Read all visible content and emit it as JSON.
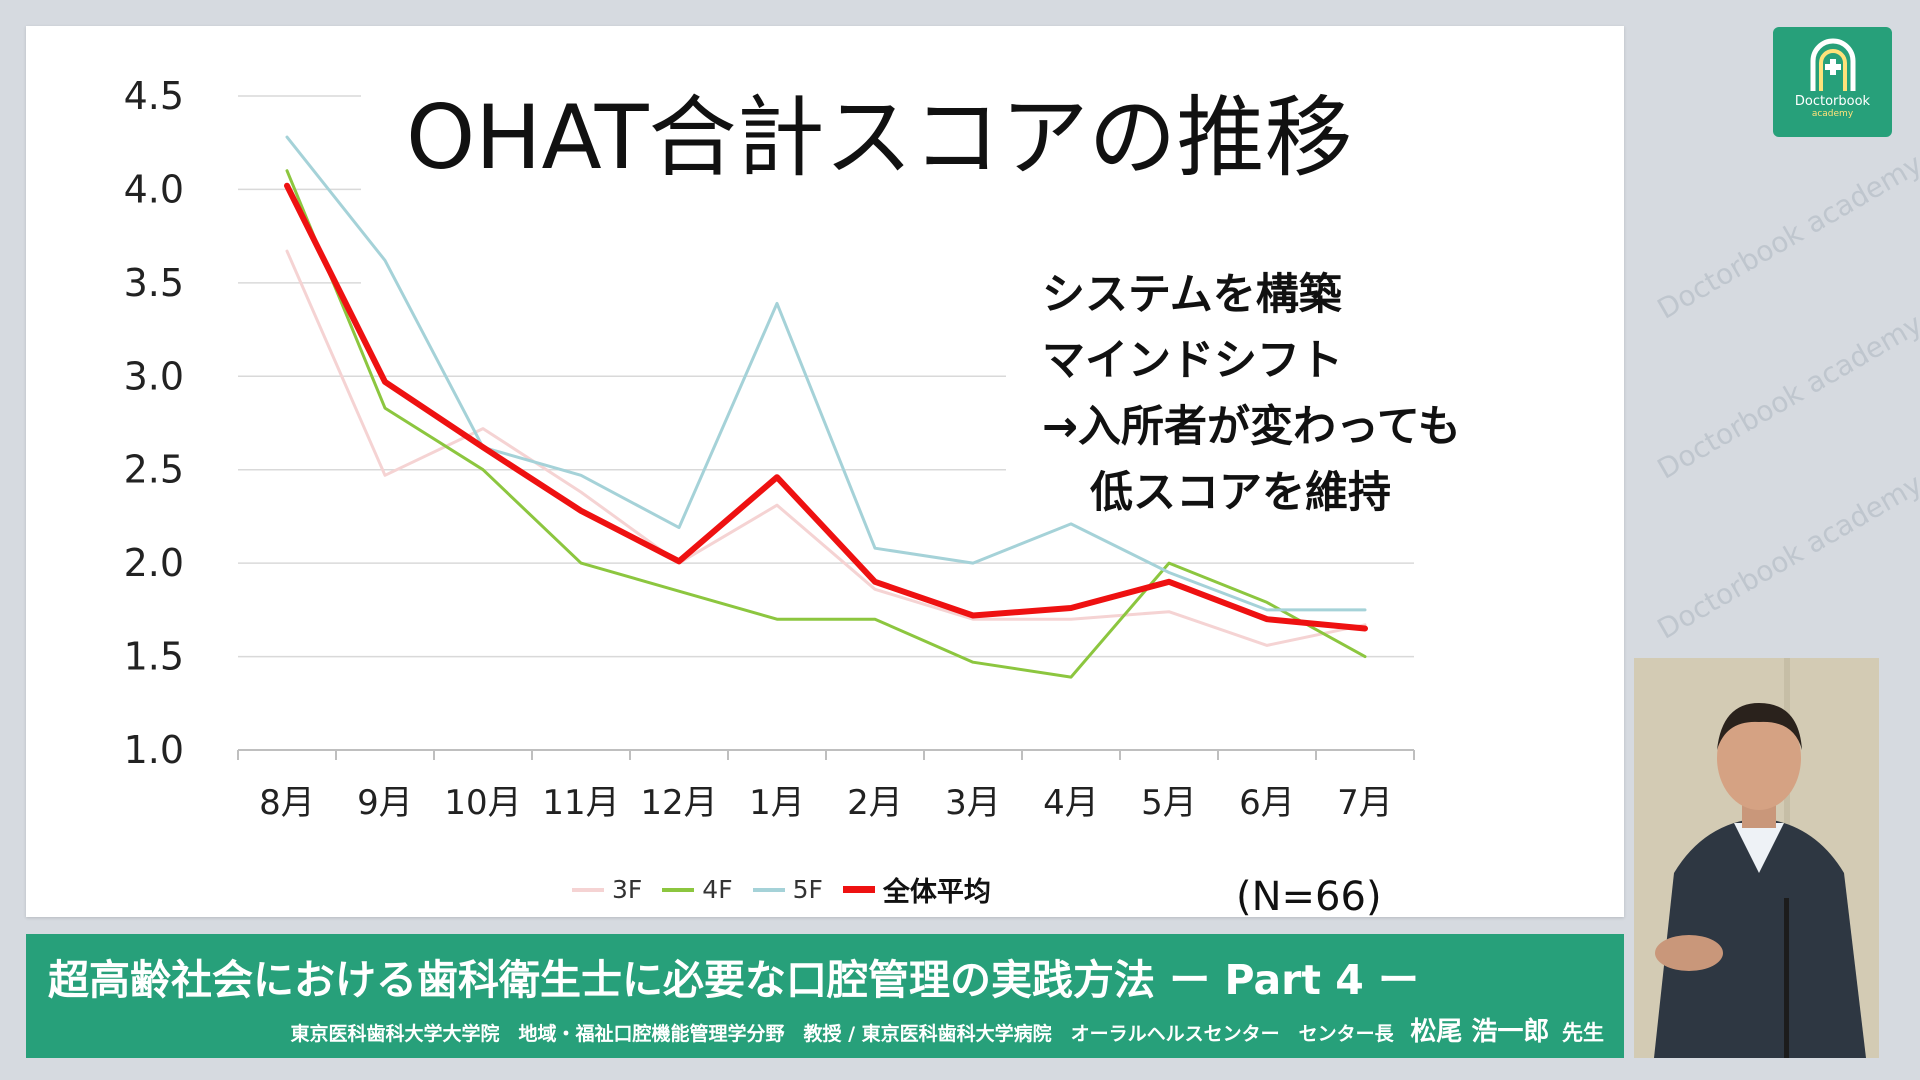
{
  "slide": {
    "title": "OHAT合計スコアの推移",
    "notes": [
      "システムを構築",
      "マインドシフト",
      "→入所者が変わっても",
      "低スコアを維持"
    ],
    "n_label": "(N=66)"
  },
  "chart_data": {
    "type": "line",
    "title": "OHAT合計スコアの推移",
    "categories": [
      "8月",
      "9月",
      "10月",
      "11月",
      "12月",
      "1月",
      "2月",
      "3月",
      "4月",
      "5月",
      "6月",
      "7月"
    ],
    "ylim": [
      1.0,
      4.5
    ],
    "yticks": [
      "1.0",
      "1.5",
      "2.0",
      "2.5",
      "3.0",
      "3.5",
      "4.0",
      "4.5"
    ],
    "grid": true,
    "legend_position": "bottom",
    "series": [
      {
        "name": "3F",
        "color": "#f5d3d3",
        "width": 3,
        "values": [
          3.67,
          2.47,
          2.72,
          2.38,
          2.0,
          2.31,
          1.86,
          1.7,
          1.7,
          1.74,
          1.56,
          1.67
        ]
      },
      {
        "name": "4F",
        "color": "#8cc63f",
        "width": 3,
        "values": [
          4.1,
          2.83,
          2.5,
          2.0,
          1.85,
          1.7,
          1.7,
          1.47,
          1.39,
          2.0,
          1.79,
          1.5
        ]
      },
      {
        "name": "5F",
        "color": "#a5d2d8",
        "width": 3,
        "values": [
          4.28,
          3.62,
          2.62,
          2.47,
          2.19,
          3.39,
          2.08,
          2.0,
          2.21,
          1.95,
          1.75,
          1.75
        ]
      },
      {
        "name": "全体平均",
        "color": "#ee1111",
        "width": 6,
        "values": [
          4.02,
          2.97,
          2.62,
          2.28,
          2.01,
          2.46,
          1.9,
          1.72,
          1.76,
          1.9,
          1.7,
          1.65
        ]
      }
    ]
  },
  "banner": {
    "title": "超高齢社会における歯科衛生士に必要な口腔管理の実践方法 ー Part 4 ー",
    "affiliation": "東京医科歯科大学大学院　地域・福祉口腔機能管理学分野　教授 / 東京医科歯科大学病院　オーラルヘルスセンター　センター長",
    "speaker": "松尾 浩一郎",
    "honorific": "先生"
  },
  "logo": {
    "name": "Doctorbook",
    "sub": "academy"
  },
  "watermark_text": "Doctorbook academy"
}
